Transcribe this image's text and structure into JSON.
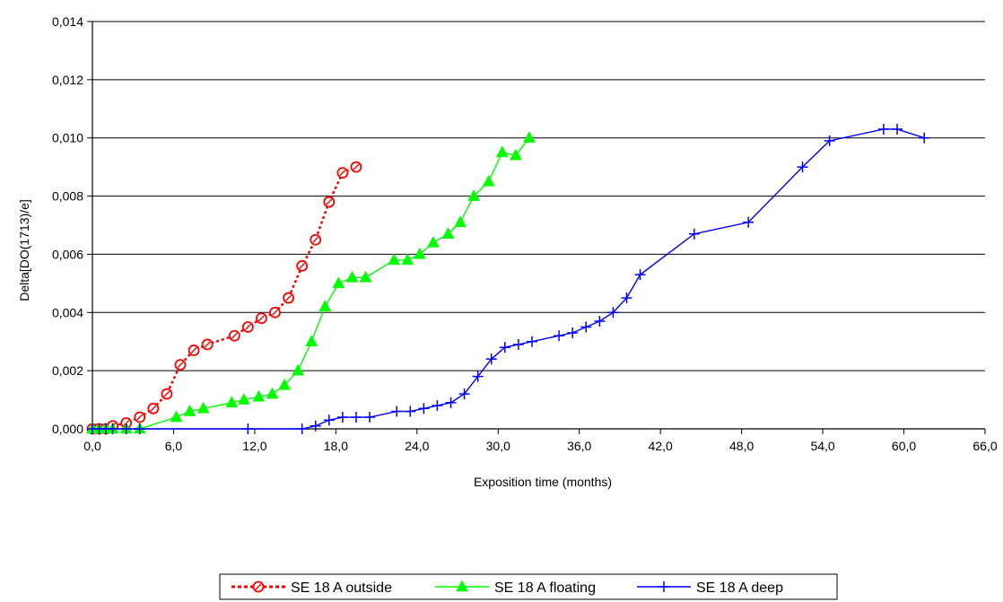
{
  "chart_data": {
    "type": "line",
    "title": "",
    "xlabel": "Exposition time (months)",
    "ylabel": "Delta[DO(1713)/e]",
    "xlim": [
      0,
      66
    ],
    "ylim": [
      0,
      0.014
    ],
    "x_ticks": [
      0,
      6,
      12,
      18,
      24,
      30,
      36,
      42,
      48,
      54,
      60,
      66
    ],
    "x_tick_labels": [
      "0,0",
      "6,0",
      "12,0",
      "18,0",
      "24,0",
      "30,0",
      "36,0",
      "42,0",
      "48,0",
      "54,0",
      "60,0",
      "66,0"
    ],
    "y_ticks": [
      0,
      0.002,
      0.004,
      0.006,
      0.008,
      0.01,
      0.012,
      0.014
    ],
    "y_tick_labels": [
      "0,000",
      "0,002",
      "0,004",
      "0,006",
      "0,008",
      "0,010",
      "0,012",
      "0,014"
    ],
    "grid": "horizontal",
    "legend_position": "bottom",
    "series": [
      {
        "name": "SE 18 A outside",
        "color": "#ff0000",
        "marker": "circle-open",
        "line": "dotted",
        "x": [
          0.0,
          0.5,
          1.0,
          1.5,
          2.5,
          3.5,
          4.5,
          5.5,
          6.5,
          7.5,
          8.5,
          10.5,
          11.5,
          12.5,
          13.5,
          14.5,
          15.5,
          16.5,
          17.5,
          18.5,
          19.5
        ],
        "y": [
          0.0,
          0.0,
          0.0,
          0.0001,
          0.0002,
          0.0004,
          0.0007,
          0.0012,
          0.0022,
          0.0027,
          0.0029,
          0.0032,
          0.0035,
          0.0038,
          0.004,
          0.0045,
          0.0056,
          0.0065,
          0.0078,
          0.0088,
          0.009
        ]
      },
      {
        "name": "SE 18 A floating",
        "color": "#00ff00",
        "marker": "triangle",
        "line": "solid",
        "x": [
          0.0,
          0.5,
          1.0,
          1.5,
          2.5,
          3.5,
          6.2,
          7.2,
          8.2,
          10.3,
          11.2,
          12.3,
          13.3,
          14.2,
          15.2,
          16.2,
          17.2,
          18.2,
          19.2,
          20.2,
          22.3,
          23.3,
          24.2,
          25.2,
          26.3,
          27.2,
          28.2,
          29.3,
          30.3,
          31.3,
          32.3
        ],
        "y": [
          0.0,
          0.0,
          0.0,
          0.0,
          0.0,
          0.0,
          0.0004,
          0.0006,
          0.0007,
          0.0009,
          0.001,
          0.0011,
          0.0012,
          0.0015,
          0.002,
          0.003,
          0.0042,
          0.005,
          0.0052,
          0.0052,
          0.0058,
          0.0058,
          0.006,
          0.0064,
          0.0067,
          0.0071,
          0.008,
          0.0085,
          0.0095,
          0.0094,
          0.01
        ]
      },
      {
        "name": "SE 18 A deep",
        "color": "#0000ff",
        "marker": "plus",
        "line": "solid",
        "x": [
          0.0,
          0.5,
          1.0,
          1.5,
          2.5,
          3.5,
          11.5,
          15.5,
          16.5,
          17.5,
          18.5,
          19.5,
          20.5,
          22.5,
          23.5,
          24.5,
          25.5,
          26.5,
          27.5,
          28.5,
          29.5,
          30.5,
          31.5,
          32.5,
          34.5,
          35.5,
          36.5,
          37.5,
          38.5,
          39.5,
          40.5,
          44.5,
          48.5,
          52.5,
          54.5,
          58.5,
          59.5,
          61.5
        ],
        "y": [
          0.0,
          0.0,
          0.0,
          0.0,
          0.0,
          0.0,
          0.0,
          0.0,
          0.0001,
          0.0003,
          0.0004,
          0.0004,
          0.0004,
          0.0006,
          0.0006,
          0.0007,
          0.0008,
          0.0009,
          0.0012,
          0.0018,
          0.0024,
          0.0028,
          0.0029,
          0.003,
          0.0032,
          0.0033,
          0.0035,
          0.0037,
          0.004,
          0.0045,
          0.0053,
          0.0067,
          0.0071,
          0.009,
          0.0099,
          0.0103,
          0.0103,
          0.01
        ]
      }
    ]
  }
}
